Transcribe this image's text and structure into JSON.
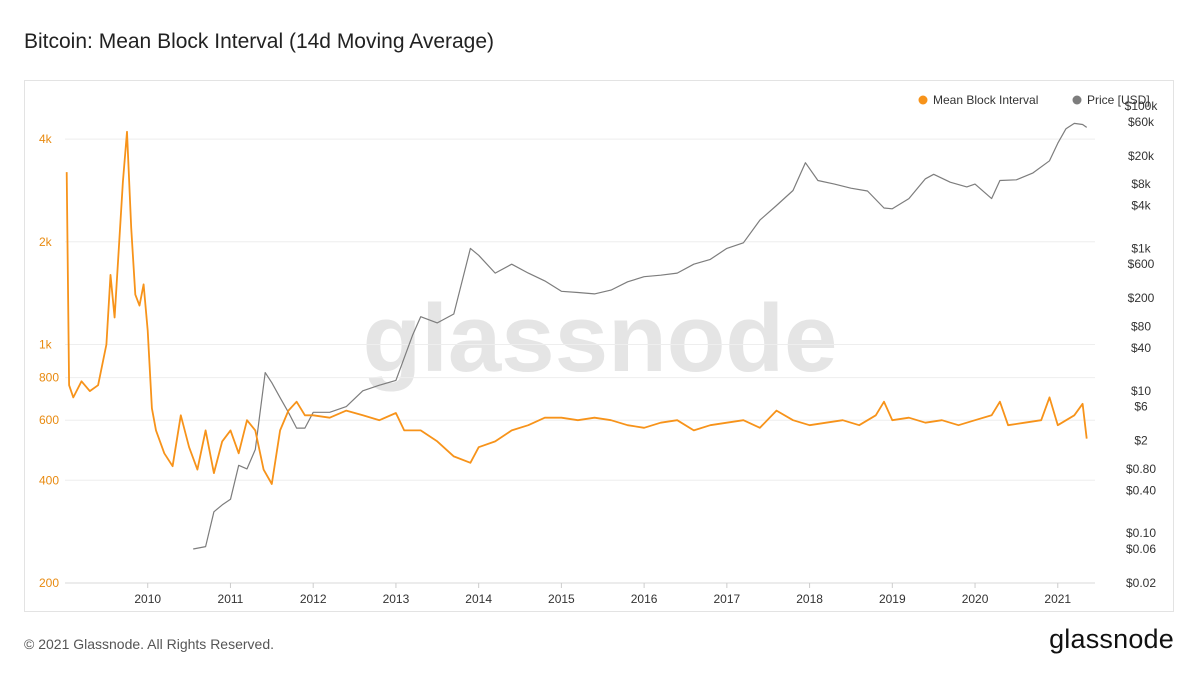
{
  "title": "Bitcoin: Mean Block Interval (14d Moving Average)",
  "footer": {
    "copyright": "© 2021 Glassnode. All Rights Reserved.",
    "logo": "glassnode"
  },
  "watermark": "glassnode",
  "colors": {
    "interval": "#f7931a",
    "price": "#7d7d7d",
    "axis_left": "#e88a10",
    "axis_right": "#333333",
    "grid": "#eeeeee"
  },
  "chart_data": {
    "type": "line",
    "title": "Bitcoin: Mean Block Interval (14d Moving Average)",
    "legend_position": "top-right",
    "grid": true,
    "x_ticks": [
      "2010",
      "2011",
      "2012",
      "2013",
      "2014",
      "2015",
      "2016",
      "2017",
      "2018",
      "2019",
      "2020",
      "2021"
    ],
    "x_range": [
      "2009-01",
      "2021-05"
    ],
    "y_left": {
      "scale": "log",
      "range": [
        200,
        5000
      ],
      "ticks": [
        "200",
        "400",
        "600",
        "800",
        "1k",
        "2k",
        "4k"
      ],
      "tick_values": [
        200,
        400,
        600,
        800,
        1000,
        2000,
        4000
      ]
    },
    "y_right": {
      "scale": "log",
      "range": [
        0.02,
        100000
      ],
      "ticks": [
        "$0.02",
        "$0.06",
        "$0.10",
        "$0.40",
        "$0.80",
        "$2",
        "$6",
        "$10",
        "$40",
        "$80",
        "$200",
        "$600",
        "$1k",
        "$4k",
        "$8k",
        "$20k",
        "$60k",
        "$100k"
      ],
      "tick_values": [
        0.02,
        0.06,
        0.1,
        0.4,
        0.8,
        2,
        6,
        10,
        40,
        80,
        200,
        600,
        1000,
        4000,
        8000,
        20000,
        60000,
        100000
      ]
    },
    "series": [
      {
        "name": "Mean Block Interval",
        "axis": "left",
        "points": [
          [
            2009.02,
            3200
          ],
          [
            2009.05,
            760
          ],
          [
            2009.1,
            700
          ],
          [
            2009.2,
            780
          ],
          [
            2009.3,
            730
          ],
          [
            2009.4,
            760
          ],
          [
            2009.5,
            1000
          ],
          [
            2009.55,
            1600
          ],
          [
            2009.6,
            1200
          ],
          [
            2009.7,
            3000
          ],
          [
            2009.75,
            4200
          ],
          [
            2009.8,
            2200
          ],
          [
            2009.85,
            1400
          ],
          [
            2009.9,
            1300
          ],
          [
            2009.95,
            1500
          ],
          [
            2010.0,
            1100
          ],
          [
            2010.05,
            650
          ],
          [
            2010.1,
            560
          ],
          [
            2010.2,
            480
          ],
          [
            2010.3,
            440
          ],
          [
            2010.4,
            620
          ],
          [
            2010.5,
            500
          ],
          [
            2010.6,
            430
          ],
          [
            2010.7,
            560
          ],
          [
            2010.8,
            420
          ],
          [
            2010.9,
            520
          ],
          [
            2011.0,
            560
          ],
          [
            2011.1,
            480
          ],
          [
            2011.2,
            600
          ],
          [
            2011.3,
            560
          ],
          [
            2011.4,
            430
          ],
          [
            2011.5,
            390
          ],
          [
            2011.6,
            560
          ],
          [
            2011.7,
            640
          ],
          [
            2011.8,
            680
          ],
          [
            2011.9,
            620
          ],
          [
            2012.0,
            620
          ],
          [
            2012.2,
            610
          ],
          [
            2012.4,
            640
          ],
          [
            2012.6,
            620
          ],
          [
            2012.8,
            600
          ],
          [
            2013.0,
            630
          ],
          [
            2013.1,
            560
          ],
          [
            2013.3,
            560
          ],
          [
            2013.5,
            520
          ],
          [
            2013.7,
            470
          ],
          [
            2013.9,
            450
          ],
          [
            2014.0,
            500
          ],
          [
            2014.2,
            520
          ],
          [
            2014.4,
            560
          ],
          [
            2014.6,
            580
          ],
          [
            2014.8,
            610
          ],
          [
            2015.0,
            610
          ],
          [
            2015.2,
            600
          ],
          [
            2015.4,
            610
          ],
          [
            2015.6,
            600
          ],
          [
            2015.8,
            580
          ],
          [
            2016.0,
            570
          ],
          [
            2016.2,
            590
          ],
          [
            2016.4,
            600
          ],
          [
            2016.6,
            560
          ],
          [
            2016.8,
            580
          ],
          [
            2017.0,
            590
          ],
          [
            2017.2,
            600
          ],
          [
            2017.4,
            570
          ],
          [
            2017.6,
            640
          ],
          [
            2017.8,
            600
          ],
          [
            2018.0,
            580
          ],
          [
            2018.2,
            590
          ],
          [
            2018.4,
            600
          ],
          [
            2018.6,
            580
          ],
          [
            2018.8,
            620
          ],
          [
            2018.9,
            680
          ],
          [
            2019.0,
            600
          ],
          [
            2019.2,
            610
          ],
          [
            2019.4,
            590
          ],
          [
            2019.6,
            600
          ],
          [
            2019.8,
            580
          ],
          [
            2020.0,
            600
          ],
          [
            2020.2,
            620
          ],
          [
            2020.3,
            680
          ],
          [
            2020.4,
            580
          ],
          [
            2020.6,
            590
          ],
          [
            2020.8,
            600
          ],
          [
            2020.9,
            700
          ],
          [
            2021.0,
            580
          ],
          [
            2021.2,
            620
          ],
          [
            2021.3,
            670
          ],
          [
            2021.35,
            530
          ]
        ]
      },
      {
        "name": "Price [USD]",
        "axis": "right",
        "points": [
          [
            2010.55,
            0.06
          ],
          [
            2010.7,
            0.065
          ],
          [
            2010.8,
            0.2
          ],
          [
            2010.9,
            0.25
          ],
          [
            2011.0,
            0.3
          ],
          [
            2011.1,
            0.9
          ],
          [
            2011.2,
            0.8
          ],
          [
            2011.3,
            1.5
          ],
          [
            2011.42,
            18
          ],
          [
            2011.5,
            13
          ],
          [
            2011.6,
            8
          ],
          [
            2011.7,
            5
          ],
          [
            2011.8,
            3
          ],
          [
            2011.9,
            3
          ],
          [
            2012.0,
            5
          ],
          [
            2012.2,
            5
          ],
          [
            2012.4,
            6
          ],
          [
            2012.6,
            10
          ],
          [
            2012.8,
            12
          ],
          [
            2013.0,
            14
          ],
          [
            2013.2,
            60
          ],
          [
            2013.3,
            110
          ],
          [
            2013.5,
            90
          ],
          [
            2013.7,
            120
          ],
          [
            2013.9,
            1000
          ],
          [
            2014.0,
            800
          ],
          [
            2014.2,
            450
          ],
          [
            2014.4,
            600
          ],
          [
            2014.6,
            450
          ],
          [
            2014.8,
            350
          ],
          [
            2015.0,
            250
          ],
          [
            2015.2,
            240
          ],
          [
            2015.4,
            230
          ],
          [
            2015.6,
            260
          ],
          [
            2015.8,
            340
          ],
          [
            2016.0,
            400
          ],
          [
            2016.2,
            420
          ],
          [
            2016.4,
            450
          ],
          [
            2016.6,
            600
          ],
          [
            2016.8,
            700
          ],
          [
            2017.0,
            1000
          ],
          [
            2017.2,
            1200
          ],
          [
            2017.4,
            2500
          ],
          [
            2017.6,
            4000
          ],
          [
            2017.8,
            6500
          ],
          [
            2017.95,
            16000
          ],
          [
            2018.1,
            9000
          ],
          [
            2018.3,
            8000
          ],
          [
            2018.5,
            7000
          ],
          [
            2018.7,
            6400
          ],
          [
            2018.9,
            3700
          ],
          [
            2019.0,
            3600
          ],
          [
            2019.2,
            5000
          ],
          [
            2019.4,
            9500
          ],
          [
            2019.5,
            11000
          ],
          [
            2019.7,
            8500
          ],
          [
            2019.9,
            7300
          ],
          [
            2020.0,
            8000
          ],
          [
            2020.2,
            5000
          ],
          [
            2020.3,
            9000
          ],
          [
            2020.5,
            9200
          ],
          [
            2020.7,
            11500
          ],
          [
            2020.9,
            17000
          ],
          [
            2021.0,
            30000
          ],
          [
            2021.1,
            48000
          ],
          [
            2021.2,
            57000
          ],
          [
            2021.3,
            55000
          ],
          [
            2021.35,
            50000
          ]
        ]
      }
    ]
  }
}
